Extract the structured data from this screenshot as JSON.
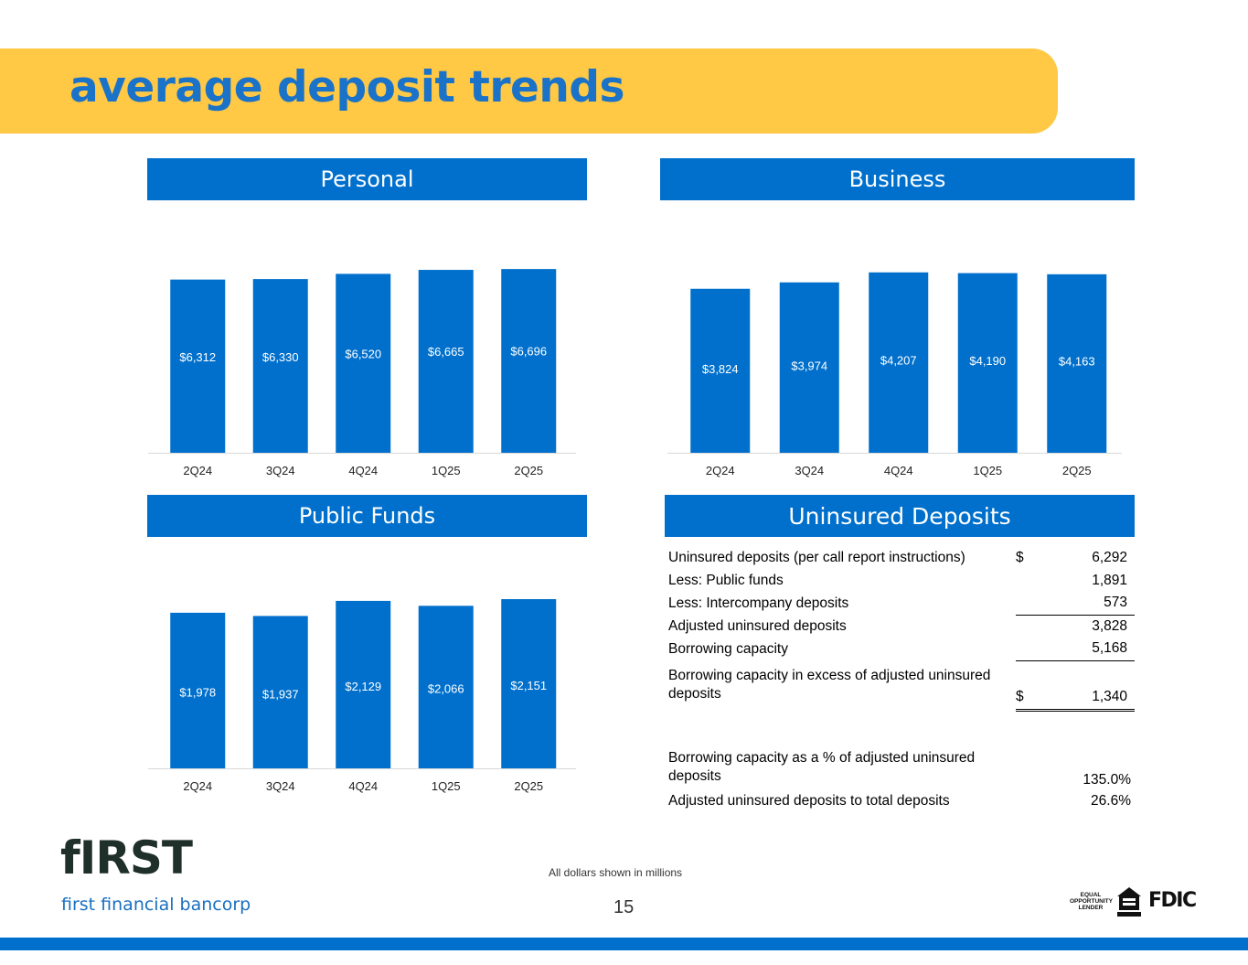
{
  "page": {
    "title": "average deposit trends",
    "footnote": "All dollars shown in millions",
    "page_number": "15"
  },
  "panels": {
    "personal": "Personal",
    "business": "Business",
    "public_funds": "Public Funds",
    "uninsured": "Uninsured Deposits"
  },
  "chart_data": [
    {
      "id": "personal",
      "type": "bar",
      "title": "Personal",
      "categories": [
        "2Q24",
        "3Q24",
        "4Q24",
        "1Q25",
        "2Q25"
      ],
      "values": [
        6312,
        6330,
        6520,
        6665,
        6696
      ],
      "labels": [
        "$6,312",
        "$6,330",
        "$6,520",
        "$6,665",
        "$6,696"
      ],
      "color": "#0070CC",
      "unit": "$ millions",
      "ylim": [
        0,
        7500
      ]
    },
    {
      "id": "business",
      "type": "bar",
      "title": "Business",
      "categories": [
        "2Q24",
        "3Q24",
        "4Q24",
        "1Q25",
        "2Q25"
      ],
      "values": [
        3824,
        3974,
        4207,
        4190,
        4163
      ],
      "labels": [
        "$3,824",
        "$3,974",
        "$4,207",
        "$4,190",
        "$4,163"
      ],
      "color": "#0070CC",
      "unit": "$ millions",
      "ylim": [
        0,
        4800
      ]
    },
    {
      "id": "public_funds",
      "type": "bar",
      "title": "Public Funds",
      "categories": [
        "2Q24",
        "3Q24",
        "4Q24",
        "1Q25",
        "2Q25"
      ],
      "values": [
        1978,
        1937,
        2129,
        2066,
        2151
      ],
      "labels": [
        "$1,978",
        "$1,937",
        "$2,129",
        "$2,066",
        "$2,151"
      ],
      "color": "#0070CC",
      "unit": "$ millions",
      "ylim": [
        0,
        2500
      ]
    }
  ],
  "uninsured_table": {
    "rows": [
      {
        "label": "Uninsured deposits (per call report instructions)",
        "currency": "$",
        "value": "6,292"
      },
      {
        "label": "Less: Public funds",
        "currency": "",
        "value": "1,891"
      },
      {
        "label": "Less: Intercompany deposits",
        "currency": "",
        "value": "573"
      },
      {
        "label": "Adjusted uninsured deposits",
        "currency": "",
        "value": "3,828"
      },
      {
        "label": "Borrowing capacity",
        "currency": "",
        "value": "5,168"
      },
      {
        "label": "Borrowing capacity in excess of adjusted uninsured deposits",
        "currency": "$",
        "value": "1,340"
      },
      {
        "label": "Borrowing capacity as a % of adjusted uninsured deposits",
        "currency": "",
        "value": "135.0%"
      },
      {
        "label": "Adjusted uninsured deposits to total deposits",
        "currency": "",
        "value": "26.6%"
      }
    ]
  },
  "logo": {
    "mark": "fIRST",
    "name": "first financial bancorp"
  },
  "badges": {
    "equal_opportunity": "EQUAL OPPORTUNITY LENDER",
    "fdic": "FDIC"
  },
  "colors": {
    "accent_blue": "#0070CC",
    "title_blue": "#1A73C8",
    "banner_yellow": "#FFC845"
  }
}
